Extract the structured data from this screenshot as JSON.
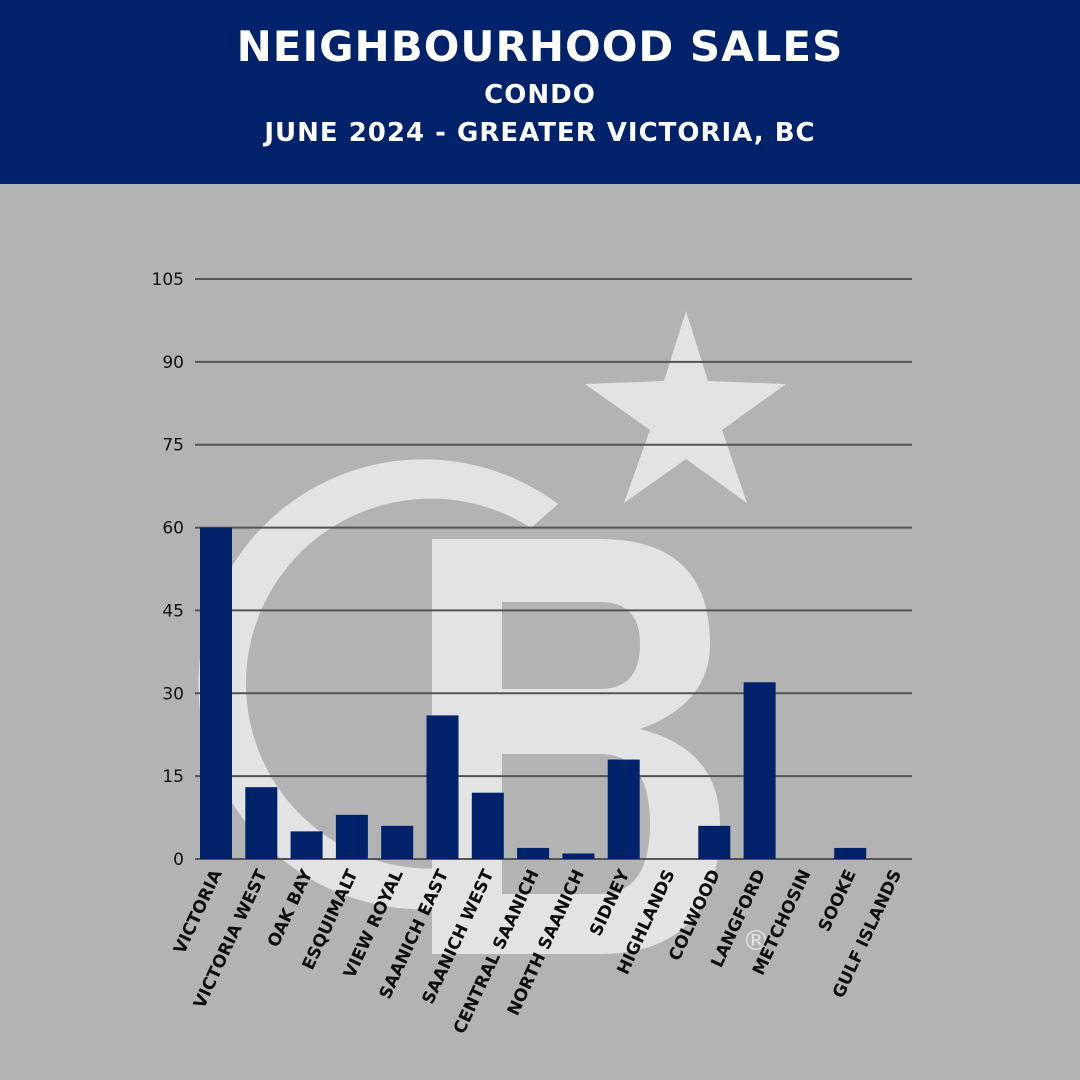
{
  "header": {
    "title": "NEIGHBOURHOOD SALES",
    "subtitle": "CONDO",
    "subtitle2": "JUNE 2024 - GREATER VICTORIA, BC"
  },
  "colors": {
    "header_bg": "#00226b",
    "bar": "#00226b",
    "background": "#b3b3b3",
    "gridline": "#555555",
    "watermark": "#e3e3e3"
  },
  "watermark": {
    "icon": "coldwell-banker-cb-star-logo",
    "registered_mark": "®"
  },
  "chart_data": {
    "type": "bar",
    "categories": [
      "VICTORIA",
      "VICTORIA WEST",
      "OAK BAY",
      "ESQUIMALT",
      "VIEW ROYAL",
      "SAANICH EAST",
      "SAANICH WEST",
      "CENTRAL SAANICH",
      "NORTH SAANICH",
      "SIDNEY",
      "HIGHLANDS",
      "COLWOOD",
      "LANGFORD",
      "METCHOSIN",
      "SOOKE",
      "GULF ISLANDS"
    ],
    "values": [
      60,
      13,
      5,
      8,
      6,
      26,
      12,
      2,
      1,
      18,
      0,
      6,
      32,
      0,
      2,
      0
    ],
    "yticks": [
      0,
      15,
      30,
      45,
      60,
      75,
      90,
      105
    ],
    "ylim": [
      0,
      105
    ],
    "grid": true,
    "legend": "none"
  }
}
